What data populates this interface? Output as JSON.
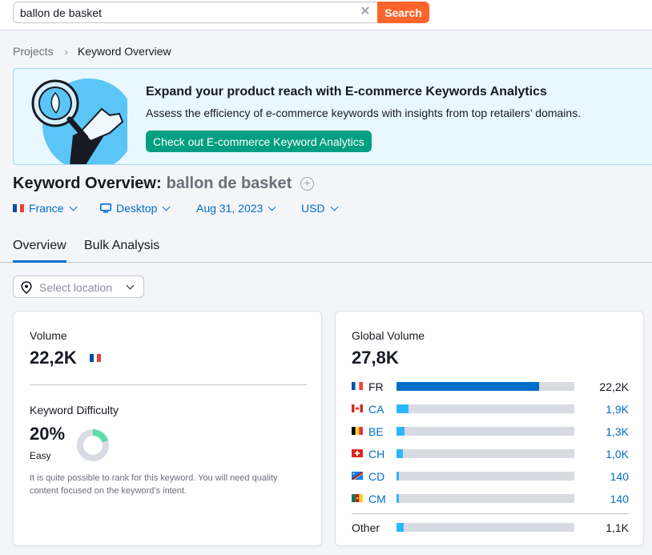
{
  "search": {
    "value": "ballon de basket",
    "button_label": "Search"
  },
  "breadcrumb": {
    "items": [
      "Projects",
      "Keyword Overview"
    ]
  },
  "banner": {
    "title": "Expand your product reach with E-commerce Keywords Analytics",
    "text": "Assess the efficiency of e-commerce keywords with insights from top retailers’ domains.",
    "button_label": "Check out E-commerce Keyword Analytics"
  },
  "page": {
    "title": "Keyword Overview:",
    "keyword": "ballon de basket"
  },
  "filters": {
    "country": "France",
    "device": "Desktop",
    "date": "Aug 31, 2023",
    "currency": "USD"
  },
  "tabs": [
    {
      "label": "Overview",
      "active": true
    },
    {
      "label": "Bulk Analysis",
      "active": false
    }
  ],
  "location": {
    "placeholder": "Select location"
  },
  "volume": {
    "label": "Volume",
    "value": "22,2K"
  },
  "difficulty": {
    "label": "Keyword Difficulty",
    "value": "20%",
    "level": "Easy",
    "percent": 20,
    "hint": "It is quite possible to rank for this keyword. You will need quality content focused on the keyword’s intent.",
    "color": "#59ddaa"
  },
  "global_volume": {
    "label": "Global Volume",
    "value": "27,8K",
    "rows": [
      {
        "code": "FR",
        "value": "22,2K",
        "share": 0.8,
        "link": false,
        "flag": "fr"
      },
      {
        "code": "CA",
        "value": "1,9K",
        "share": 0.068,
        "link": true,
        "flag": "ca"
      },
      {
        "code": "BE",
        "value": "1,3K",
        "share": 0.047,
        "link": true,
        "flag": "be"
      },
      {
        "code": "CH",
        "value": "1,0K",
        "share": 0.036,
        "link": true,
        "flag": "ch"
      },
      {
        "code": "CD",
        "value": "140",
        "share": 0.012,
        "link": true,
        "flag": "cd"
      },
      {
        "code": "CM",
        "value": "140",
        "share": 0.012,
        "link": true,
        "flag": "cm"
      }
    ],
    "other": {
      "label": "Other",
      "value": "1,1K",
      "share": 0.04
    }
  },
  "colors": {
    "accent": "#006dca",
    "search": "#ff642d",
    "cta": "#009f81",
    "bar_primary": "#006dca",
    "bar_secondary": "#2bb7ff"
  }
}
